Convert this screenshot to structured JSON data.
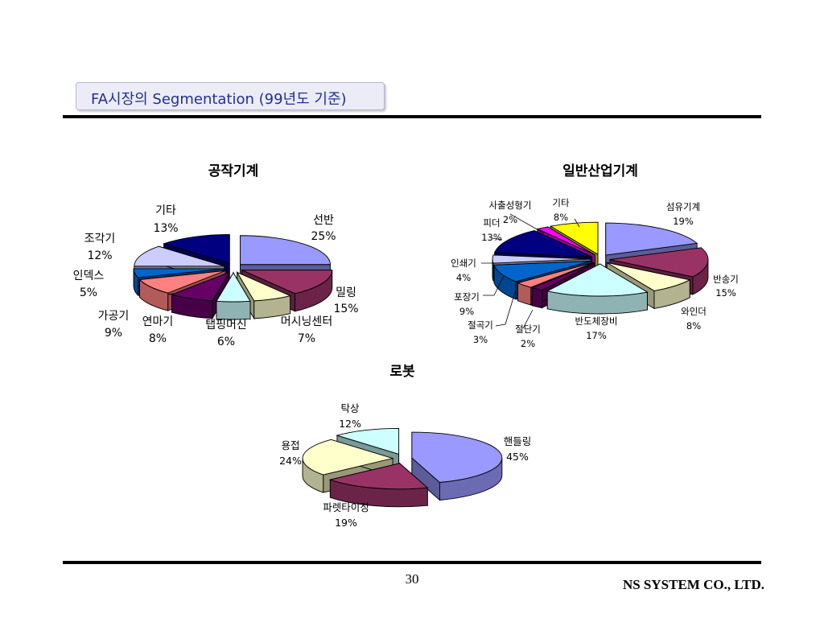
{
  "slide": {
    "title": "FA시장의 Segmentation (99년도 기준)",
    "page_number": "30",
    "company": "NS SYSTEM CO., LTD."
  },
  "chart_data": [
    {
      "type": "pie",
      "title": "공작기계",
      "slices": [
        {
          "name": "선반",
          "value": 25,
          "label": "25%",
          "color": "#9999ff"
        },
        {
          "name": "밀링",
          "value": 15,
          "label": "15%",
          "color": "#993366"
        },
        {
          "name": "머시닝센터",
          "value": 7,
          "label": "7%",
          "color": "#ffffcc"
        },
        {
          "name": "탭핑머신",
          "value": 6,
          "label": "6%",
          "color": "#ccffff"
        },
        {
          "name": "연마기",
          "value": 8,
          "label": "8%",
          "color": "#660066"
        },
        {
          "name": "가공기",
          "value": 9,
          "label": "9%",
          "color": "#ff8080"
        },
        {
          "name": "인덱스",
          "value": 5,
          "label": "5%",
          "color": "#0066cc"
        },
        {
          "name": "조각기",
          "value": 12,
          "label": "12%",
          "color": "#ccccff"
        },
        {
          "name": "기타",
          "value": 13,
          "label": "13%",
          "color": "#000080"
        }
      ]
    },
    {
      "type": "pie",
      "title": "일반산업기계",
      "slices": [
        {
          "name": "섬유기계",
          "value": 19,
          "label": "19%",
          "color": "#9999ff"
        },
        {
          "name": "반송기",
          "value": 15,
          "label": "15%",
          "color": "#993366"
        },
        {
          "name": "와인더",
          "value": 8,
          "label": "8%",
          "color": "#ffffcc"
        },
        {
          "name": "반도체장비",
          "value": 17,
          "label": "17%",
          "color": "#ccffff"
        },
        {
          "name": "절단기",
          "value": 2,
          "label": "2%",
          "color": "#660066"
        },
        {
          "name": "절곡기",
          "value": 3,
          "label": "3%",
          "color": "#ff8080"
        },
        {
          "name": "포장기",
          "value": 9,
          "label": "9%",
          "color": "#0066cc"
        },
        {
          "name": "인쇄기",
          "value": 4,
          "label": "4%",
          "color": "#ccccff"
        },
        {
          "name": "피더",
          "value": 13,
          "label": "13%",
          "color": "#000080"
        },
        {
          "name": "사출성형기",
          "value": 2,
          "label": "2%",
          "color": "#ff00ff"
        },
        {
          "name": "기타",
          "value": 8,
          "label": "8%",
          "color": "#ffff00"
        }
      ]
    },
    {
      "type": "pie",
      "title": "로봇",
      "slices": [
        {
          "name": "핸들링",
          "value": 45,
          "label": "45%",
          "color": "#9999ff"
        },
        {
          "name": "파렛타이징",
          "value": 19,
          "label": "19%",
          "color": "#993366"
        },
        {
          "name": "용접",
          "value": 24,
          "label": "24%",
          "color": "#ffffcc"
        },
        {
          "name": "탁상",
          "value": 12,
          "label": "12%",
          "color": "#ccffff"
        }
      ]
    }
  ]
}
